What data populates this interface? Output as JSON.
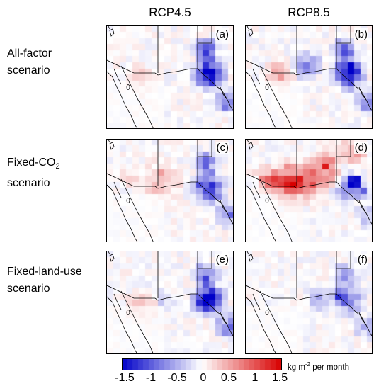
{
  "columns": [
    "RCP4.5",
    "RCP8.5"
  ],
  "rows": [
    {
      "line1": "All-factor",
      "line2": "scenario"
    },
    {
      "line1": "Fixed-CO",
      "line1_sub": "2",
      "line2": "scenario"
    },
    {
      "line1": "Fixed-land-use",
      "line2": "scenario"
    }
  ],
  "panel_labels": [
    "(a)",
    "(b)",
    "(c)",
    "(d)",
    "(e)",
    "(f)"
  ],
  "colorbar": {
    "ticks": [
      "-1.5",
      "-1",
      "-0.5",
      "0",
      "0.5",
      "1",
      "1.5"
    ],
    "unit_main": "kg m",
    "unit_sup": "-2",
    "unit_rest": " per month",
    "min": -1.5,
    "max": 1.5,
    "negative_color": "#0000c8",
    "positive_color": "#d80000",
    "neutral_color": "#ffffff"
  }
}
